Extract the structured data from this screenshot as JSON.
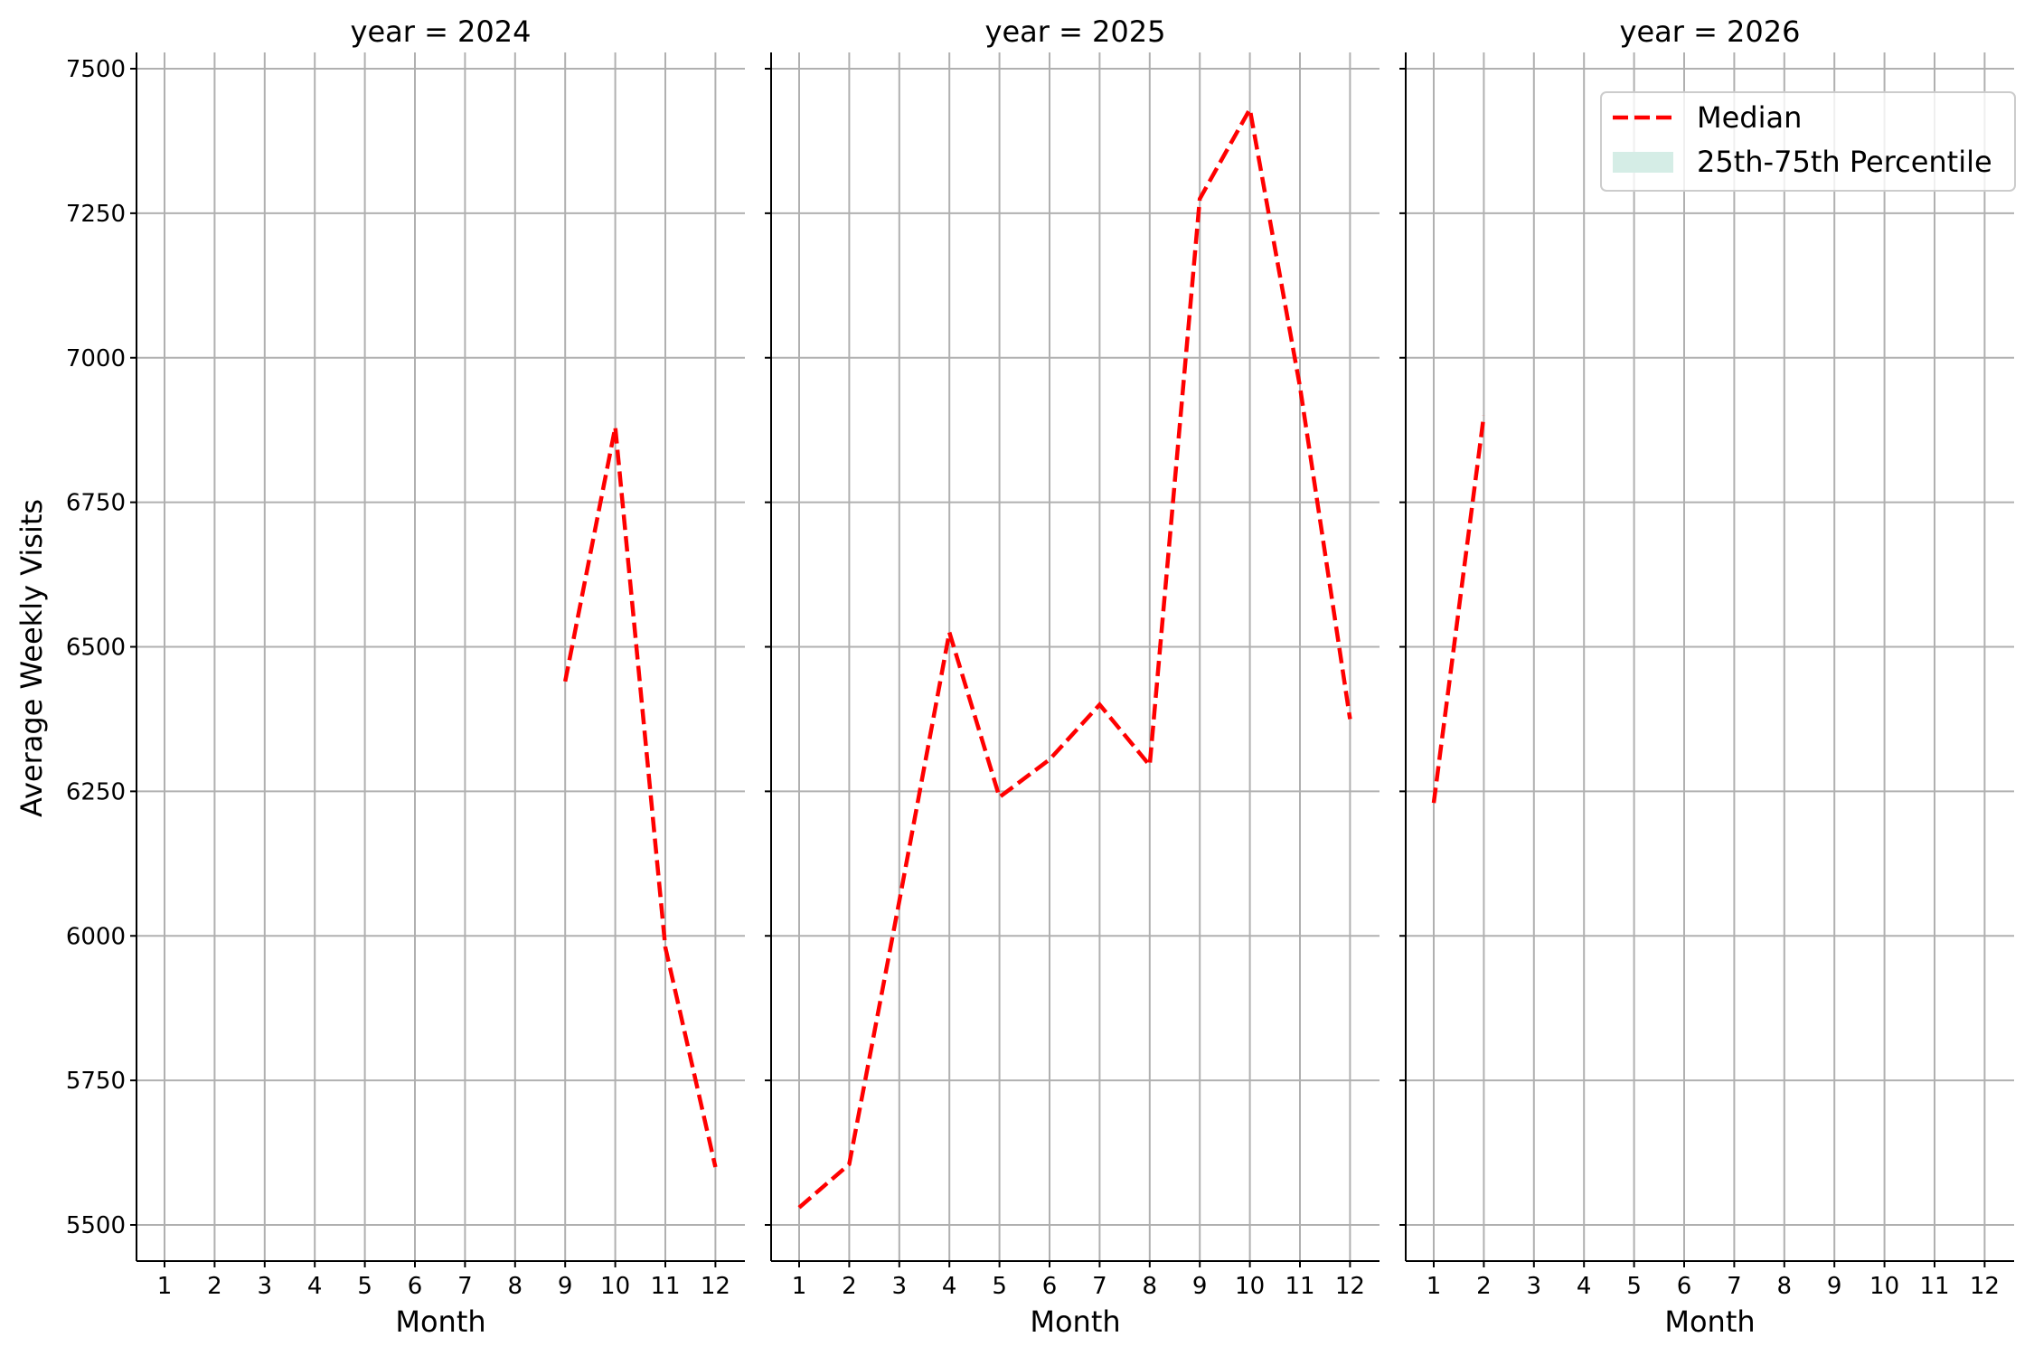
{
  "chart_data": {
    "type": "line",
    "ylabel": "Average Weekly Visits",
    "ylim": [
      5440,
      7530
    ],
    "yticks": [
      5500,
      5750,
      6000,
      6250,
      6500,
      6750,
      7000,
      7250,
      7500
    ],
    "xticks": [
      1,
      2,
      3,
      4,
      5,
      6,
      7,
      8,
      9,
      10,
      11,
      12
    ],
    "grid": true,
    "legend": {
      "placement": "top-right",
      "entries": [
        "Median",
        "25th-75th Percentile"
      ]
    },
    "colors": {
      "median": "#ff0000",
      "band": "#d5ede6"
    },
    "panels": [
      {
        "title": "year = 2024",
        "xlabel": "Month",
        "x": [
          9,
          10,
          11,
          12
        ],
        "median": [
          6440,
          6880,
          5980,
          5600
        ]
      },
      {
        "title": "year = 2025",
        "xlabel": "Month",
        "x": [
          1,
          2,
          3,
          4,
          5,
          6,
          7,
          8,
          9,
          10,
          11,
          12
        ],
        "median": [
          5530,
          5605,
          6060,
          6525,
          6240,
          6305,
          6400,
          6295,
          7275,
          7430,
          6950,
          6375
        ]
      },
      {
        "title": "year = 2026",
        "xlabel": "Month",
        "x": [
          1,
          2
        ],
        "median": [
          6230,
          6900
        ]
      }
    ]
  }
}
